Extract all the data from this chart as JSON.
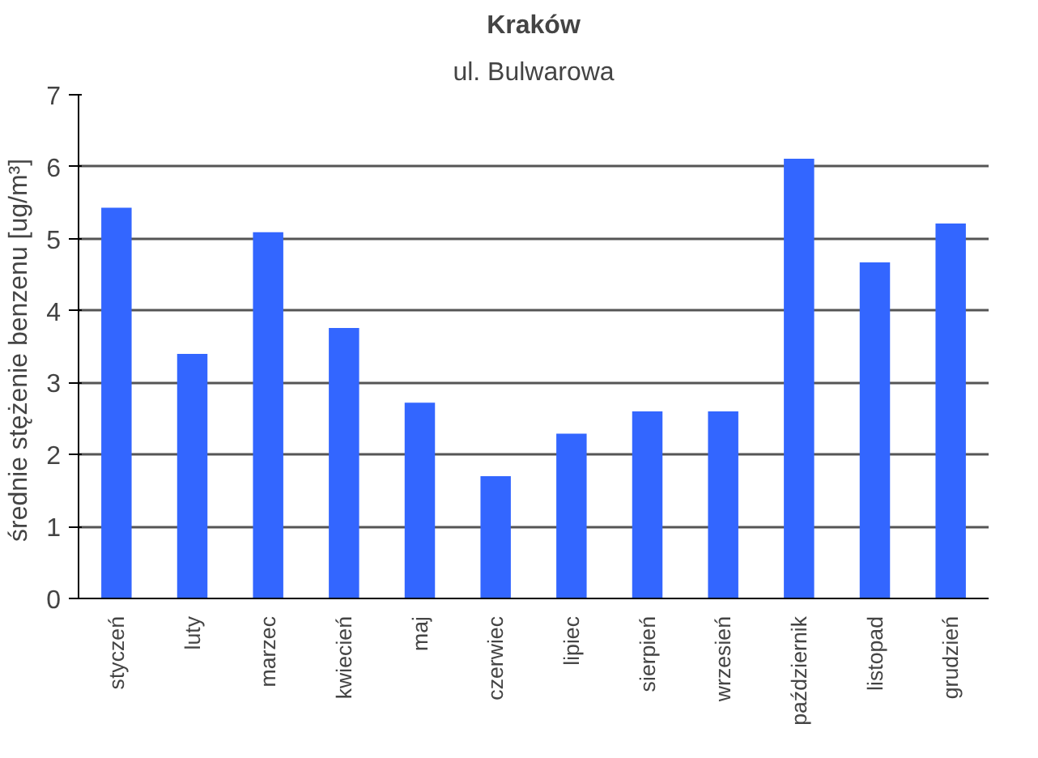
{
  "chart_data": {
    "type": "bar",
    "title": "Kraków",
    "subtitle": "ul. Bulwarowa",
    "ylabel": "średnie stężenie benzenu  [ug/m³]",
    "categories": [
      "styczeń",
      "luty",
      "marzec",
      "kwiecień",
      "maj",
      "czerwiec",
      "lipiec",
      "sierpień",
      "wrzesień",
      "październik",
      "listopad",
      "grudzień"
    ],
    "values": [
      5.43,
      3.4,
      5.09,
      3.76,
      2.72,
      1.7,
      2.29,
      2.6,
      2.6,
      6.11,
      4.67,
      5.21
    ],
    "color": "#3366ff",
    "ylim": [
      0,
      7
    ],
    "yticks": [
      0,
      1,
      2,
      3,
      4,
      5,
      6,
      7
    ],
    "grid": "y"
  }
}
